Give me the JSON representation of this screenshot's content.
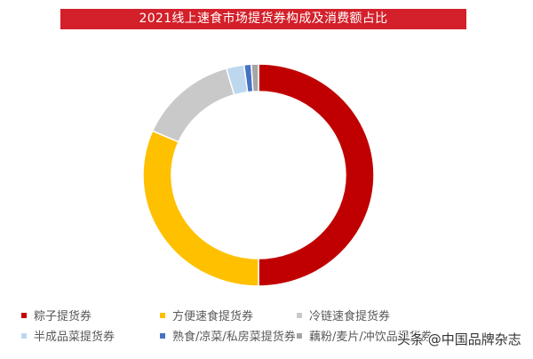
{
  "title": "2021线上速食市场提货券构成及消费额占比",
  "colors": {
    "title_bg": "#d3202a",
    "title_text": "#ffffff"
  },
  "chart_data": {
    "type": "pie",
    "subtype": "donut",
    "title": "2021线上速食市场提货券构成及消费额占比",
    "start_angle_deg": 0,
    "direction": "clockwise",
    "legend_position": "bottom",
    "data_labels": false,
    "categories": [
      "粽子提货券",
      "方便速食提货券",
      "冷链速食提货券",
      "半成品菜提货券",
      "熟食/凉菜/私房菜提货券",
      "藕粉/麦片/冲饮品提货券"
    ],
    "values": [
      50.0,
      31.5,
      14.0,
      2.5,
      1.0,
      1.0
    ],
    "unit": "%",
    "series_colors": [
      "#c00000",
      "#ffc000",
      "#c9c9c9",
      "#bdd7ee",
      "#4472c4",
      "#a5a5a5"
    ]
  },
  "legend": {
    "items": [
      {
        "label": "粽子提货券",
        "color": "#c00000"
      },
      {
        "label": "方便速食提货券",
        "color": "#ffc000"
      },
      {
        "label": "冷链速食提货券",
        "color": "#c9c9c9"
      },
      {
        "label": "半成品菜提货券",
        "color": "#bdd7ee"
      },
      {
        "label": "熟食/凉菜/私房菜提货券",
        "color": "#4472c4"
      },
      {
        "label": "藕粉/麦片/冲饮品提货券",
        "color": "#a5a5a5"
      }
    ]
  },
  "watermark": "头条 @中国品牌杂志"
}
